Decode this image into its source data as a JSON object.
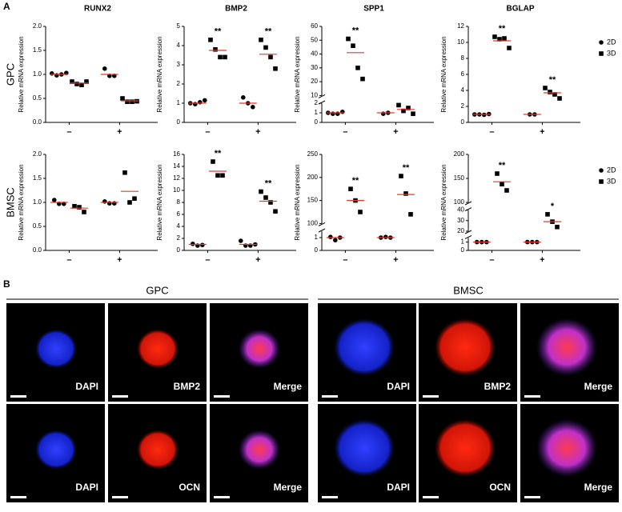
{
  "panel_a": {
    "label": "A",
    "row_labels": [
      "GPC",
      "BMSC"
    ]
  },
  "chart_data": [
    {
      "type": "dotplot",
      "title": "RUNX2",
      "ylabel": "Relative mRNA expression",
      "categories": [
        "–",
        "+"
      ],
      "mean_color": "#e8372c",
      "axis_segments": [
        {
          "ylim": [
            0,
            2
          ],
          "yticks": [
            {
              "value": 0,
              "label": "0.0"
            },
            {
              "value": 0.5,
              "label": "0.5"
            },
            {
              "value": 1,
              "label": "1.0"
            },
            {
              "value": 1.5,
              "label": "1.5"
            },
            {
              "value": 2,
              "label": "2.0"
            }
          ]
        }
      ],
      "series": [
        {
          "name": "2D",
          "marker": "circle",
          "color": "#000000",
          "values": [
            [
              1.02,
              0.98,
              1.0,
              1.03
            ],
            [
              1.12,
              0.97,
              0.97
            ]
          ],
          "means": [
            1.0,
            1.0
          ],
          "annotations": [
            null,
            null
          ]
        },
        {
          "name": "3D",
          "marker": "square",
          "color": "#000000",
          "values": [
            [
              0.85,
              0.8,
              0.78,
              0.85
            ],
            [
              0.5,
              0.43,
              0.43,
              0.44
            ]
          ],
          "means": [
            0.82,
            0.45
          ],
          "annotations": [
            null,
            null
          ]
        }
      ]
    },
    {
      "type": "dotplot",
      "title": "BMP2",
      "ylabel": "Relative mRNA expression",
      "categories": [
        "–",
        "+"
      ],
      "mean_color": "#e8372c",
      "axis_segments": [
        {
          "ylim": [
            0,
            5
          ],
          "yticks": [
            0,
            1,
            2,
            3,
            4,
            5
          ]
        }
      ],
      "series": [
        {
          "name": "2D",
          "marker": "circle",
          "color": "#000000",
          "values": [
            [
              1.0,
              0.95,
              1.05,
              1.15
            ],
            [
              1.3,
              1.0,
              0.8
            ]
          ],
          "means": [
            1.0,
            1.0
          ],
          "annotations": [
            null,
            null
          ]
        },
        {
          "name": "3D",
          "marker": "square",
          "color": "#000000",
          "values": [
            [
              4.3,
              3.8,
              3.4,
              3.4
            ],
            [
              4.3,
              3.9,
              3.4,
              2.8
            ]
          ],
          "means": [
            3.75,
            3.55
          ],
          "annotations": [
            "**",
            "**"
          ]
        }
      ]
    },
    {
      "type": "dotplot",
      "title": "SPP1",
      "ylabel": "Relative mRNA expression",
      "categories": [
        "–",
        "+"
      ],
      "mean_color": "#e8372c",
      "axis_segments": [
        {
          "ylim": [
            0,
            2
          ],
          "yticks": [
            0,
            1,
            2
          ]
        },
        {
          "ylim": [
            10,
            60
          ],
          "yticks": [
            10,
            20,
            30,
            40,
            50,
            60
          ]
        }
      ],
      "series": [
        {
          "name": "2D",
          "marker": "circle",
          "color": "#000000",
          "values": [
            [
              1.0,
              0.9,
              0.9,
              1.1
            ],
            [
              0.9,
              1.0
            ]
          ],
          "means": [
            1.0,
            1.0
          ],
          "annotations": [
            null,
            null
          ]
        },
        {
          "name": "3D",
          "marker": "square",
          "color": "#000000",
          "values": [
            [
              51,
              46,
              30,
              22
            ],
            [
              1.8,
              1.2,
              1.5,
              0.9
            ]
          ],
          "means": [
            41,
            1.35
          ],
          "annotations": [
            "**",
            null
          ]
        }
      ]
    },
    {
      "type": "dotplot",
      "title": "BGLAP",
      "ylabel": "Relative mRNA expression",
      "categories": [
        "–",
        "+"
      ],
      "mean_color": "#e8372c",
      "legend": true,
      "axis_segments": [
        {
          "ylim": [
            0,
            12
          ],
          "yticks": [
            0,
            2,
            4,
            6,
            8,
            10,
            12
          ]
        }
      ],
      "series": [
        {
          "name": "2D",
          "marker": "circle",
          "color": "#000000",
          "values": [
            [
              1.0,
              1.0,
              0.95,
              1.05
            ],
            [
              1.0,
              1.0
            ]
          ],
          "means": [
            1.0,
            1.0
          ],
          "annotations": [
            null,
            null
          ]
        },
        {
          "name": "3D",
          "marker": "square",
          "color": "#000000",
          "values": [
            [
              10.7,
              10.4,
              10.5,
              9.3
            ],
            [
              4.3,
              3.8,
              3.5,
              3.0
            ]
          ],
          "means": [
            10.2,
            3.7
          ],
          "annotations": [
            "**",
            "**"
          ]
        }
      ]
    },
    {
      "type": "dotplot",
      "title": null,
      "ylabel": "Relative mRNA expression",
      "categories": [
        "–",
        "+"
      ],
      "mean_color": "#e8372c",
      "axis_segments": [
        {
          "ylim": [
            0,
            2
          ],
          "yticks": [
            {
              "value": 0,
              "label": "0.0"
            },
            {
              "value": 0.5,
              "label": "0.5"
            },
            {
              "value": 1,
              "label": "1.0"
            },
            {
              "value": 1.5,
              "label": "1.5"
            },
            {
              "value": 2,
              "label": "2.0"
            }
          ]
        }
      ],
      "series": [
        {
          "name": "2D",
          "marker": "circle",
          "color": "#000000",
          "values": [
            [
              1.05,
              0.97,
              0.97
            ],
            [
              1.02,
              0.98,
              0.98
            ]
          ],
          "means": [
            1.0,
            1.0
          ],
          "annotations": [
            null,
            null
          ]
        },
        {
          "name": "3D",
          "marker": "square",
          "color": "#000000",
          "values": [
            [
              0.92,
              0.9,
              0.8
            ],
            [
              1.62,
              1.0,
              1.08
            ]
          ],
          "means": [
            0.88,
            1.23
          ],
          "annotations": [
            null,
            null
          ]
        }
      ]
    },
    {
      "type": "dotplot",
      "title": null,
      "ylabel": "Relative mRNA expression",
      "categories": [
        "–",
        "+"
      ],
      "mean_color": "#e8372c",
      "axis_segments": [
        {
          "ylim": [
            0,
            16
          ],
          "yticks": [
            0,
            2,
            4,
            6,
            8,
            10,
            12,
            14,
            16
          ]
        }
      ],
      "series": [
        {
          "name": "2D",
          "marker": "circle",
          "color": "#000000",
          "values": [
            [
              1.1,
              0.8,
              0.9
            ],
            [
              1.6,
              0.8,
              0.8,
              1.0
            ]
          ],
          "means": [
            1.0,
            1.0
          ],
          "annotations": [
            null,
            null
          ]
        },
        {
          "name": "3D",
          "marker": "square",
          "color": "#000000",
          "values": [
            [
              14.8,
              12.5,
              12.5
            ],
            [
              9.8,
              8.8,
              8.0,
              6.5
            ]
          ],
          "means": [
            13.2,
            8.2
          ],
          "annotations": [
            "**",
            "**"
          ]
        }
      ]
    },
    {
      "type": "dotplot",
      "title": null,
      "ylabel": "Relative mRNA expression",
      "categories": [
        "–",
        "+"
      ],
      "mean_color": "#e8372c",
      "axis_segments": [
        {
          "ylim": [
            0,
            1.5
          ],
          "yticks": [
            0,
            1
          ]
        },
        {
          "ylim": [
            100,
            250
          ],
          "yticks": [
            100,
            150,
            200,
            250
          ]
        }
      ],
      "series": [
        {
          "name": "2D",
          "marker": "circle",
          "color": "#000000",
          "values": [
            [
              1.05,
              0.8,
              1.0
            ],
            [
              1.0,
              1.05,
              1.0
            ]
          ],
          "means": [
            1.0,
            1.0
          ],
          "annotations": [
            null,
            null
          ]
        },
        {
          "name": "3D",
          "marker": "square",
          "color": "#000000",
          "values": [
            [
              175,
              150,
              125
            ],
            [
              203,
              165,
              120
            ]
          ],
          "means": [
            150,
            163
          ],
          "annotations": [
            "**",
            "**"
          ]
        }
      ]
    },
    {
      "type": "dotplot",
      "title": null,
      "ylabel": "Relative mRNA expression",
      "categories": [
        "–",
        "+"
      ],
      "mean_color": "#e8372c",
      "legend": true,
      "axis_segments": [
        {
          "ylim": [
            0,
            1.5
          ],
          "yticks": [
            0,
            1
          ]
        },
        {
          "ylim": [
            20,
            40
          ],
          "yticks": [
            20,
            30,
            40
          ]
        },
        {
          "ylim": [
            100,
            200
          ],
          "yticks": [
            100,
            150,
            200
          ]
        }
      ],
      "series": [
        {
          "name": "2D",
          "marker": "circle",
          "color": "#000000",
          "values": [
            [
              1.0,
              1.0,
              1.0
            ],
            [
              1.0,
              1.0,
              1.0
            ]
          ],
          "means": [
            1.0,
            1.0
          ],
          "annotations": [
            null,
            null
          ]
        },
        {
          "name": "3D",
          "marker": "square",
          "color": "#000000",
          "values": [
            [
              160,
              138,
              125
            ],
            [
              36,
              29,
              24
            ]
          ],
          "means": [
            143,
            29
          ],
          "annotations": [
            "**",
            "*"
          ]
        }
      ]
    }
  ],
  "panel_b": {
    "label": "B",
    "groups": [
      {
        "title": "GPC",
        "rows": [
          [
            "DAPI",
            "BMP2",
            "Merge"
          ],
          [
            "DAPI",
            "OCN",
            "Merge"
          ]
        ]
      },
      {
        "title": "BMSC",
        "rows": [
          [
            "DAPI",
            "BMP2",
            "Merge"
          ],
          [
            "DAPI",
            "OCN",
            "Merge"
          ]
        ]
      }
    ]
  }
}
